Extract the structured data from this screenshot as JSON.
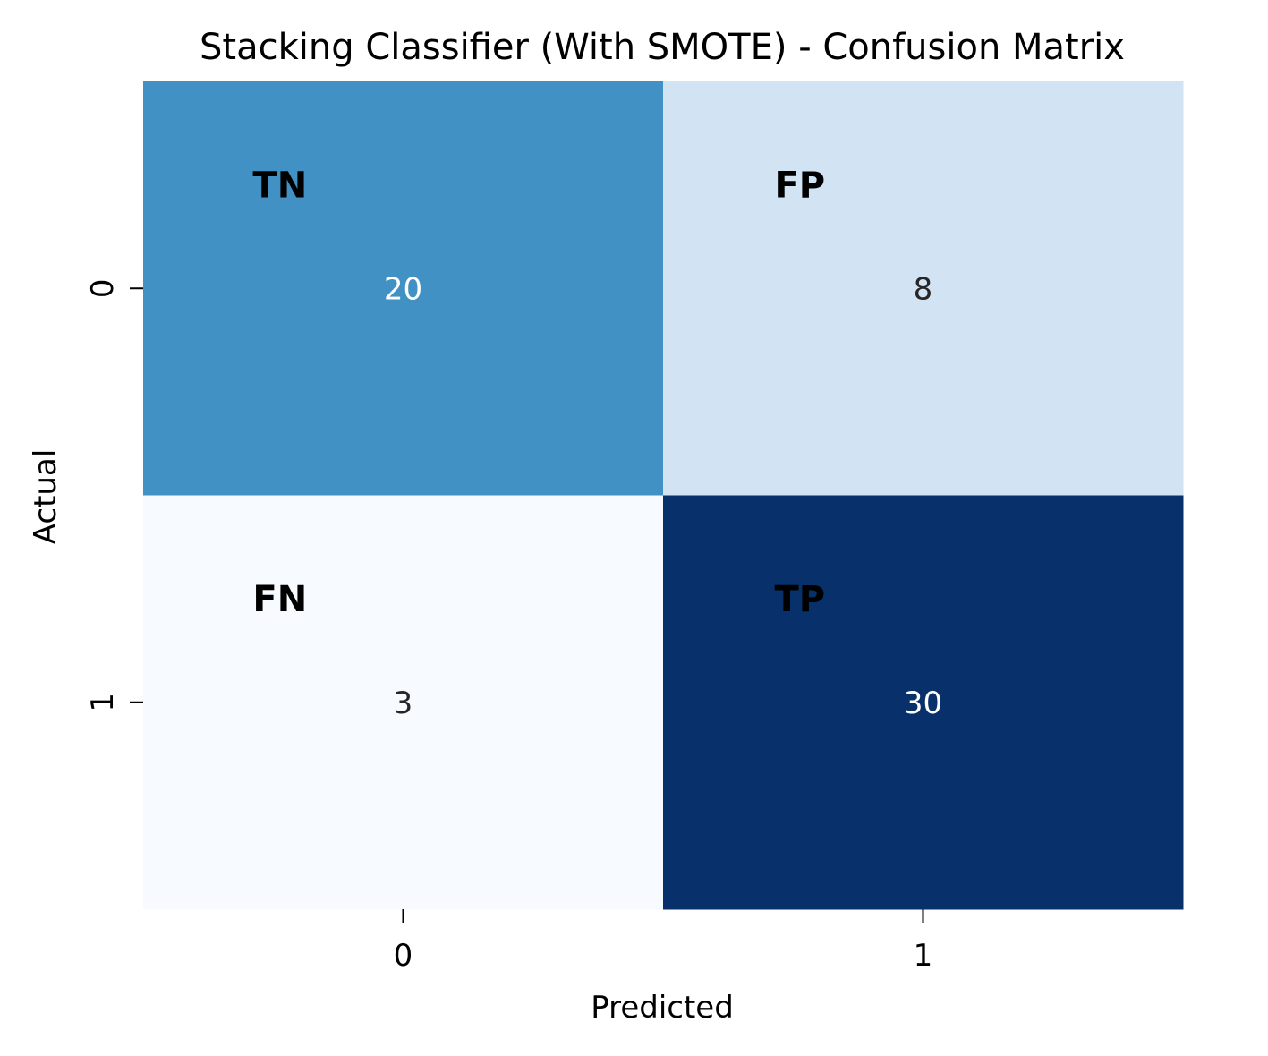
{
  "chart_data": {
    "type": "heatmap",
    "title": "Stacking Classifier (With SMOTE) - Confusion Matrix",
    "xlabel": "Predicted",
    "ylabel": "Actual",
    "x_categories": [
      "0",
      "1"
    ],
    "y_categories": [
      "0",
      "1"
    ],
    "values": [
      [
        20,
        8
      ],
      [
        3,
        30
      ]
    ],
    "annotations": [
      [
        "TN",
        "FP"
      ],
      [
        "FN",
        "TP"
      ]
    ],
    "colormap": "Blues",
    "colorbar": false,
    "grid": false
  }
}
